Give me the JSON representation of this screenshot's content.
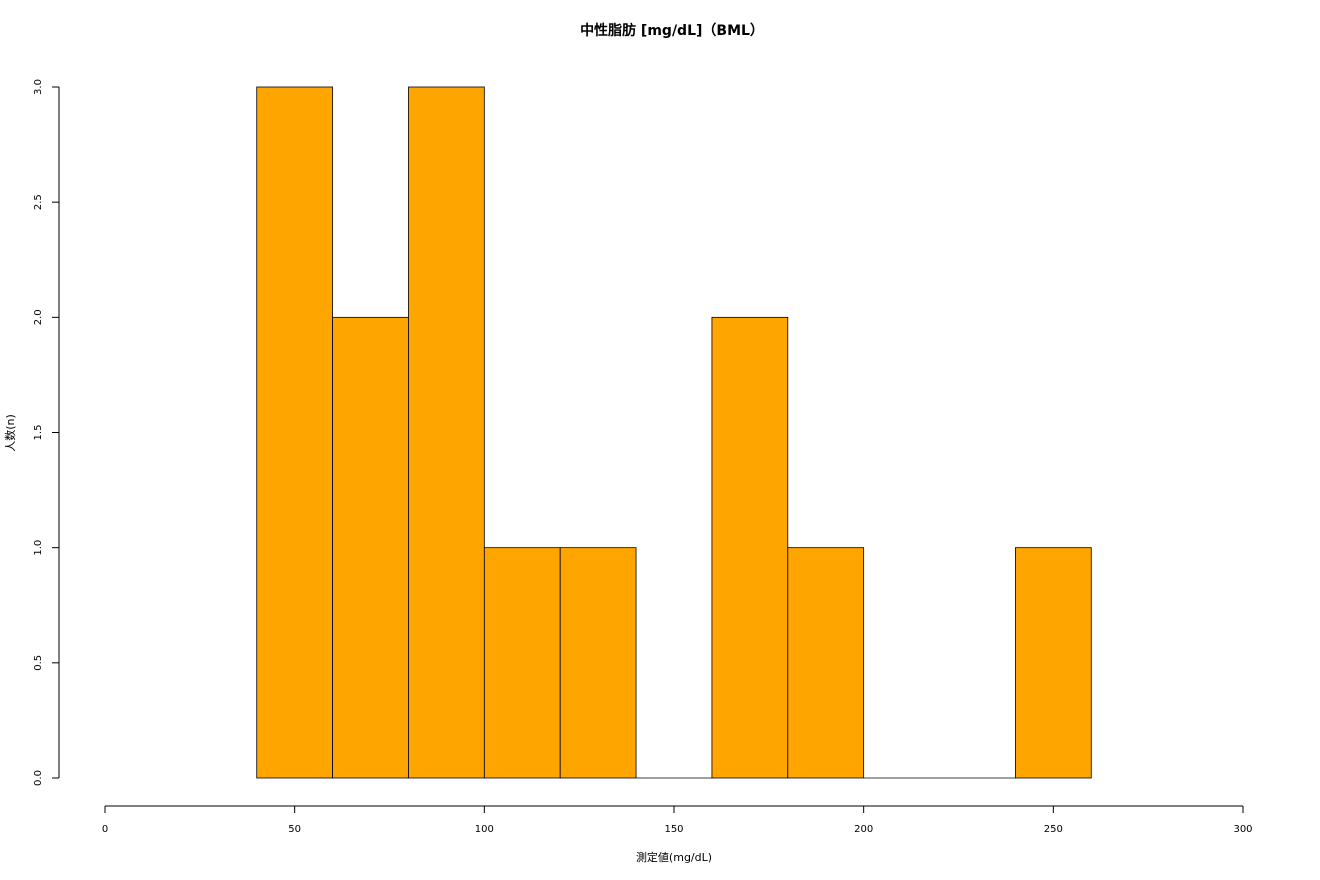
{
  "chart_data": {
    "type": "bar",
    "title": "中性脂肪 [mg/dL]（BML）",
    "xlabel": "測定値(mg/dL)",
    "ylabel": "人数(n)",
    "bins": [
      {
        "start": 40,
        "end": 60,
        "count": 3
      },
      {
        "start": 60,
        "end": 80,
        "count": 2
      },
      {
        "start": 80,
        "end": 100,
        "count": 3
      },
      {
        "start": 100,
        "end": 120,
        "count": 1
      },
      {
        "start": 120,
        "end": 140,
        "count": 1
      },
      {
        "start": 140,
        "end": 160,
        "count": 0
      },
      {
        "start": 160,
        "end": 180,
        "count": 2
      },
      {
        "start": 180,
        "end": 200,
        "count": 1
      },
      {
        "start": 200,
        "end": 220,
        "count": 0
      },
      {
        "start": 220,
        "end": 240,
        "count": 0
      },
      {
        "start": 240,
        "end": 260,
        "count": 1
      }
    ],
    "xlim": [
      0,
      300
    ],
    "ylim": [
      0,
      3
    ],
    "x_ticks": [
      "0",
      "50",
      "100",
      "150",
      "200",
      "250",
      "300"
    ],
    "y_ticks": [
      "0.0",
      "0.5",
      "1.0",
      "1.5",
      "2.0",
      "2.5",
      "3.0"
    ],
    "bar_color": "#FFA500",
    "grid": false,
    "legend": "none"
  }
}
